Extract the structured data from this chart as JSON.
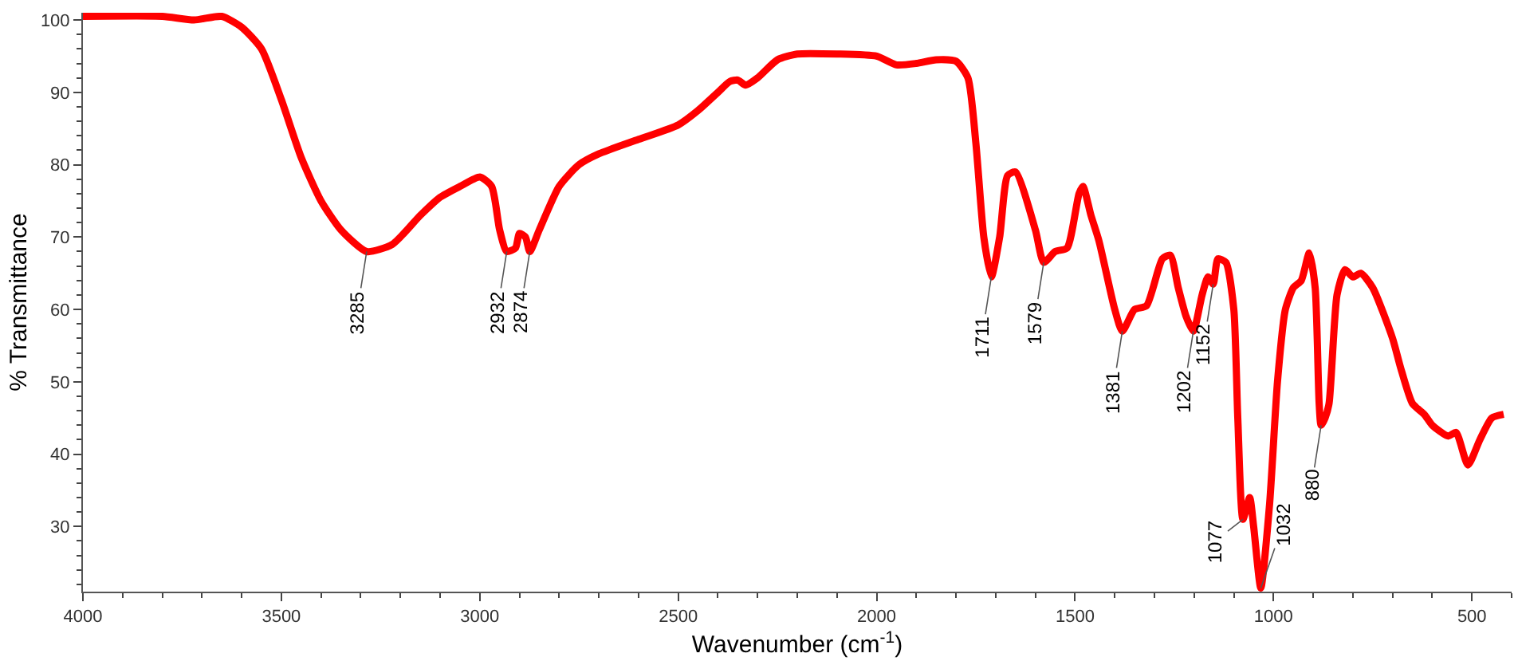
{
  "chart_data": {
    "type": "line",
    "xlabel": "Wavenumber (cm$^{-1}$)",
    "ylabel": "% Transmittance",
    "xlim": [
      4000,
      400
    ],
    "ylim": [
      21,
      101
    ],
    "xticks": [
      4000,
      3500,
      3000,
      2500,
      2000,
      1500,
      1000,
      500
    ],
    "yticks": [
      30,
      40,
      50,
      60,
      70,
      80,
      90,
      100
    ],
    "marker": "none",
    "line_style": "solid",
    "x": [
      4000,
      3800,
      3720,
      3650,
      3600,
      3550,
      3500,
      3450,
      3400,
      3350,
      3285,
      3220,
      3150,
      3100,
      3050,
      3000,
      2970,
      2950,
      2932,
      2910,
      2900,
      2885,
      2874,
      2850,
      2800,
      2750,
      2700,
      2600,
      2500,
      2450,
      2400,
      2370,
      2350,
      2330,
      2300,
      2250,
      2200,
      2100,
      2000,
      1950,
      1900,
      1850,
      1800,
      1770,
      1750,
      1730,
      1711,
      1690,
      1670,
      1650,
      1600,
      1579,
      1550,
      1520,
      1490,
      1480,
      1460,
      1440,
      1400,
      1381,
      1350,
      1320,
      1280,
      1260,
      1240,
      1220,
      1202,
      1180,
      1165,
      1152,
      1140,
      1120,
      1100,
      1090,
      1077,
      1060,
      1050,
      1032,
      1010,
      990,
      970,
      950,
      930,
      910,
      895,
      885,
      880,
      870,
      860,
      840,
      820,
      800,
      780,
      750,
      700,
      680,
      650,
      620,
      600,
      560,
      540,
      510,
      480,
      450,
      420
    ],
    "series": [
      {
        "color": "#ff0000",
        "values": [
          100.5,
          100.5,
          100,
          100.5,
          99,
          96,
          89,
          81,
          75,
          71,
          68,
          69,
          73,
          75.5,
          77,
          78.3,
          77,
          71,
          68,
          68.5,
          70.5,
          70,
          68,
          71,
          77,
          80,
          81.5,
          83.5,
          85.5,
          87.5,
          90,
          91.5,
          91.7,
          91,
          92,
          94.5,
          95.3,
          95.3,
          95,
          93.8,
          94,
          94.5,
          94.3,
          92,
          83,
          70,
          64.5,
          70,
          78.5,
          79,
          71,
          66.5,
          68,
          68.5,
          76,
          77,
          73,
          69.5,
          60,
          57,
          60,
          60.5,
          67,
          67.5,
          63,
          59,
          57,
          62,
          64.5,
          63.5,
          67,
          66.5,
          60,
          45,
          31,
          34,
          30,
          21.5,
          33,
          50,
          60,
          63,
          64,
          67.8,
          63,
          47,
          44,
          45,
          47,
          62,
          65.5,
          64.5,
          65,
          63,
          56,
          52,
          47,
          45.5,
          44,
          42.5,
          43,
          38.5,
          42,
          45,
          45.5
        ]
      }
    ],
    "annotations": [
      {
        "text": "3285",
        "x": 3285,
        "y": 68
      },
      {
        "text": "2932",
        "x": 2932,
        "y": 68
      },
      {
        "text": "2874",
        "x": 2874,
        "y": 68
      },
      {
        "text": "1711",
        "x": 1711,
        "y": 64.5
      },
      {
        "text": "1579",
        "x": 1579,
        "y": 66.5
      },
      {
        "text": "1381",
        "x": 1381,
        "y": 57
      },
      {
        "text": "1202",
        "x": 1202,
        "y": 57
      },
      {
        "text": "1152",
        "x": 1152,
        "y": 63.5
      },
      {
        "text": "1077",
        "x": 1077,
        "y": 31
      },
      {
        "text": "1032",
        "x": 1032,
        "y": 21.5
      },
      {
        "text": "880",
        "x": 880,
        "y": 44
      }
    ]
  }
}
